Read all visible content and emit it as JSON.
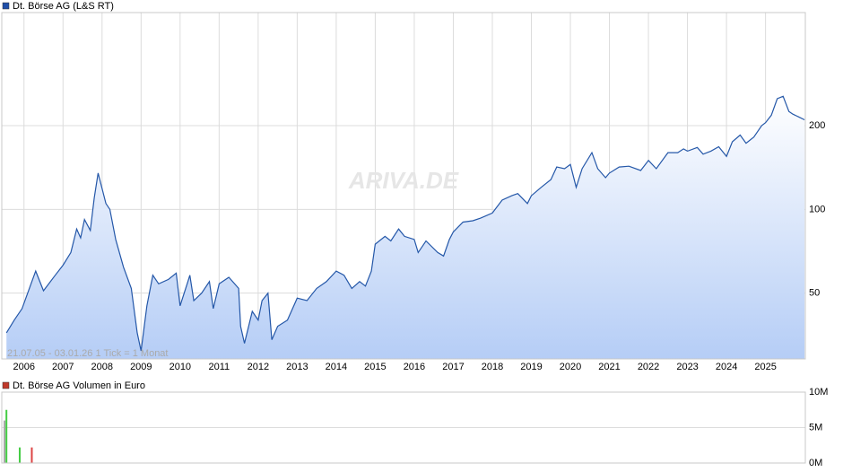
{
  "chart_data": [
    {
      "type": "area",
      "legend": "Dt. Börse AG (L&S RT)",
      "legend_color": "#1f4fa8",
      "footnote": "21.07.05 - 03.01.26   1 Tick = 1 Monat",
      "watermark": "ARIVA.DE",
      "log": true,
      "grid": true,
      "xlim": [
        2005.5,
        2026.02
      ],
      "xticks": [
        2006,
        2007,
        2008,
        2009,
        2010,
        2011,
        2012,
        2013,
        2014,
        2015,
        2016,
        2017,
        2018,
        2019,
        2020,
        2021,
        2022,
        2023,
        2024,
        2025
      ],
      "ylim": [
        29,
        510
      ],
      "yticks": [
        50,
        100,
        200
      ],
      "series": [
        {
          "name": "Dt. Börse AG",
          "color": "#2457a8",
          "x": [
            2005.55,
            2005.75,
            2005.95,
            2006.2,
            2006.3,
            2006.5,
            2006.8,
            2007.0,
            2007.2,
            2007.35,
            2007.45,
            2007.55,
            2007.7,
            2007.8,
            2007.9,
            2008.1,
            2008.2,
            2008.35,
            2008.55,
            2008.75,
            2008.9,
            2009.0,
            2009.15,
            2009.3,
            2009.45,
            2009.7,
            2009.9,
            2010.0,
            2010.2,
            2010.25,
            2010.35,
            2010.55,
            2010.75,
            2010.85,
            2011.0,
            2011.25,
            2011.5,
            2011.55,
            2011.65,
            2011.85,
            2012.0,
            2012.1,
            2012.25,
            2012.35,
            2012.5,
            2012.75,
            2013.0,
            2013.25,
            2013.5,
            2013.75,
            2014.0,
            2014.2,
            2014.4,
            2014.6,
            2014.75,
            2014.9,
            2015.0,
            2015.25,
            2015.4,
            2015.6,
            2015.75,
            2016.0,
            2016.1,
            2016.3,
            2016.6,
            2016.75,
            2016.9,
            2017.0,
            2017.25,
            2017.5,
            2017.7,
            2018.0,
            2018.25,
            2018.5,
            2018.65,
            2018.9,
            2019.0,
            2019.25,
            2019.5,
            2019.65,
            2019.85,
            2020.0,
            2020.15,
            2020.3,
            2020.55,
            2020.7,
            2020.9,
            2021.0,
            2021.25,
            2021.5,
            2021.8,
            2022.0,
            2022.2,
            2022.5,
            2022.75,
            2022.9,
            2023.0,
            2023.25,
            2023.4,
            2023.6,
            2023.8,
            2024.0,
            2024.15,
            2024.35,
            2024.5,
            2024.7,
            2024.9,
            2025.0,
            2025.15,
            2025.3,
            2025.45,
            2025.6,
            2025.7,
            2025.85,
            2026.0
          ],
          "values": [
            36,
            40,
            44,
            55,
            60,
            51,
            58,
            63,
            70,
            85,
            79,
            92,
            84,
            110,
            135,
            105,
            100,
            78,
            62,
            52,
            36,
            31,
            45,
            58,
            54,
            56,
            59,
            45,
            55,
            58,
            47,
            50,
            55,
            44,
            54,
            57,
            52,
            38,
            33,
            43,
            40,
            47,
            50,
            34,
            38,
            40,
            48,
            47,
            52,
            55,
            60,
            58,
            52,
            55,
            53,
            60,
            75,
            80,
            77,
            85,
            80,
            78,
            70,
            77,
            70,
            68,
            78,
            83,
            90,
            91,
            93,
            97,
            108,
            112,
            114,
            105,
            112,
            120,
            128,
            142,
            140,
            145,
            120,
            140,
            160,
            140,
            130,
            135,
            142,
            143,
            138,
            150,
            140,
            160,
            160,
            165,
            162,
            167,
            158,
            162,
            168,
            155,
            175,
            185,
            173,
            182,
            200,
            205,
            218,
            250,
            255,
            225,
            220,
            215,
            210
          ]
        }
      ]
    },
    {
      "type": "bar",
      "legend": "Dt. Börse AG Volumen in Euro",
      "legend_color": "#c0392b",
      "xlim": [
        2005.5,
        2026.02
      ],
      "ylim": [
        0,
        10
      ],
      "yticks": [
        {
          "value": 0,
          "label": "0M"
        },
        {
          "value": 5,
          "label": "5M"
        },
        {
          "value": 10,
          "label": "10M"
        }
      ],
      "x": [
        2005.5,
        2005.55,
        2005.89,
        2006.2
      ],
      "values": [
        6,
        7.5,
        2.2,
        2.2
      ],
      "colors": [
        "#aaaaaa",
        "#44cc44",
        "#44cc44",
        "#dd4444"
      ]
    }
  ]
}
